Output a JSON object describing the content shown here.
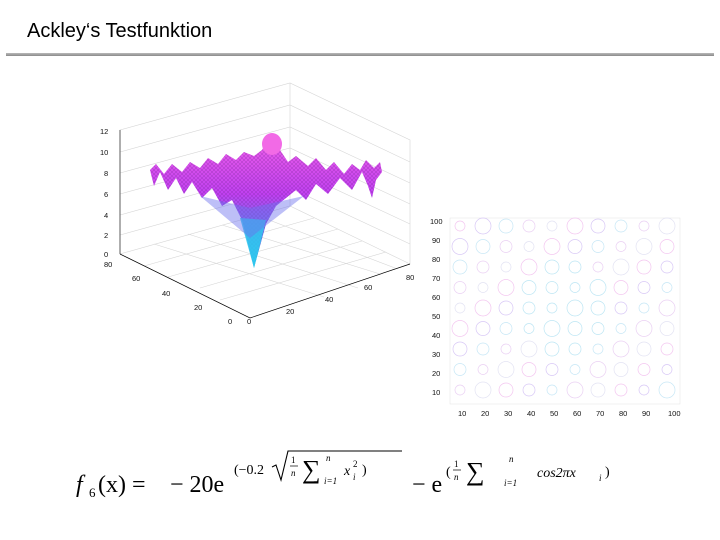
{
  "slide": {
    "title": "Ackley‘s Testfunktion"
  },
  "chart_data": [
    {
      "type": "surface",
      "z_ticks": [
        "0",
        "2",
        "4",
        "6",
        "8",
        "10",
        "12"
      ],
      "x_ticks": [
        "0",
        "20",
        "40",
        "60",
        "80"
      ],
      "y_ticks": [
        "0",
        "20",
        "40",
        "60",
        "80"
      ],
      "colormap": [
        "#20d8ee",
        "#6a78f0",
        "#c040f0",
        "#f060e8"
      ]
    },
    {
      "type": "contour",
      "x_ticks": [
        "10",
        "20",
        "30",
        "40",
        "50",
        "60",
        "70",
        "80",
        "90",
        "100"
      ],
      "y_ticks": [
        "10",
        "20",
        "30",
        "40",
        "50",
        "60",
        "70",
        "80",
        "90",
        "100"
      ]
    }
  ],
  "formula": {
    "lhs": "f",
    "lhs_sub": "6",
    "lhs_arg": "(x) =",
    "term1": "− 20e",
    "exp1_coef": "(−0.2",
    "frac_num": "1",
    "frac_den": "n",
    "sum_top": "n",
    "sum_bottom": "i=1",
    "var": "x",
    "var_sup": "2",
    "var_sub": "i",
    "close1": ")",
    "term2": "− e",
    "exp2_open": "(",
    "cos_term": "cos2πx",
    "close2": ")"
  }
}
